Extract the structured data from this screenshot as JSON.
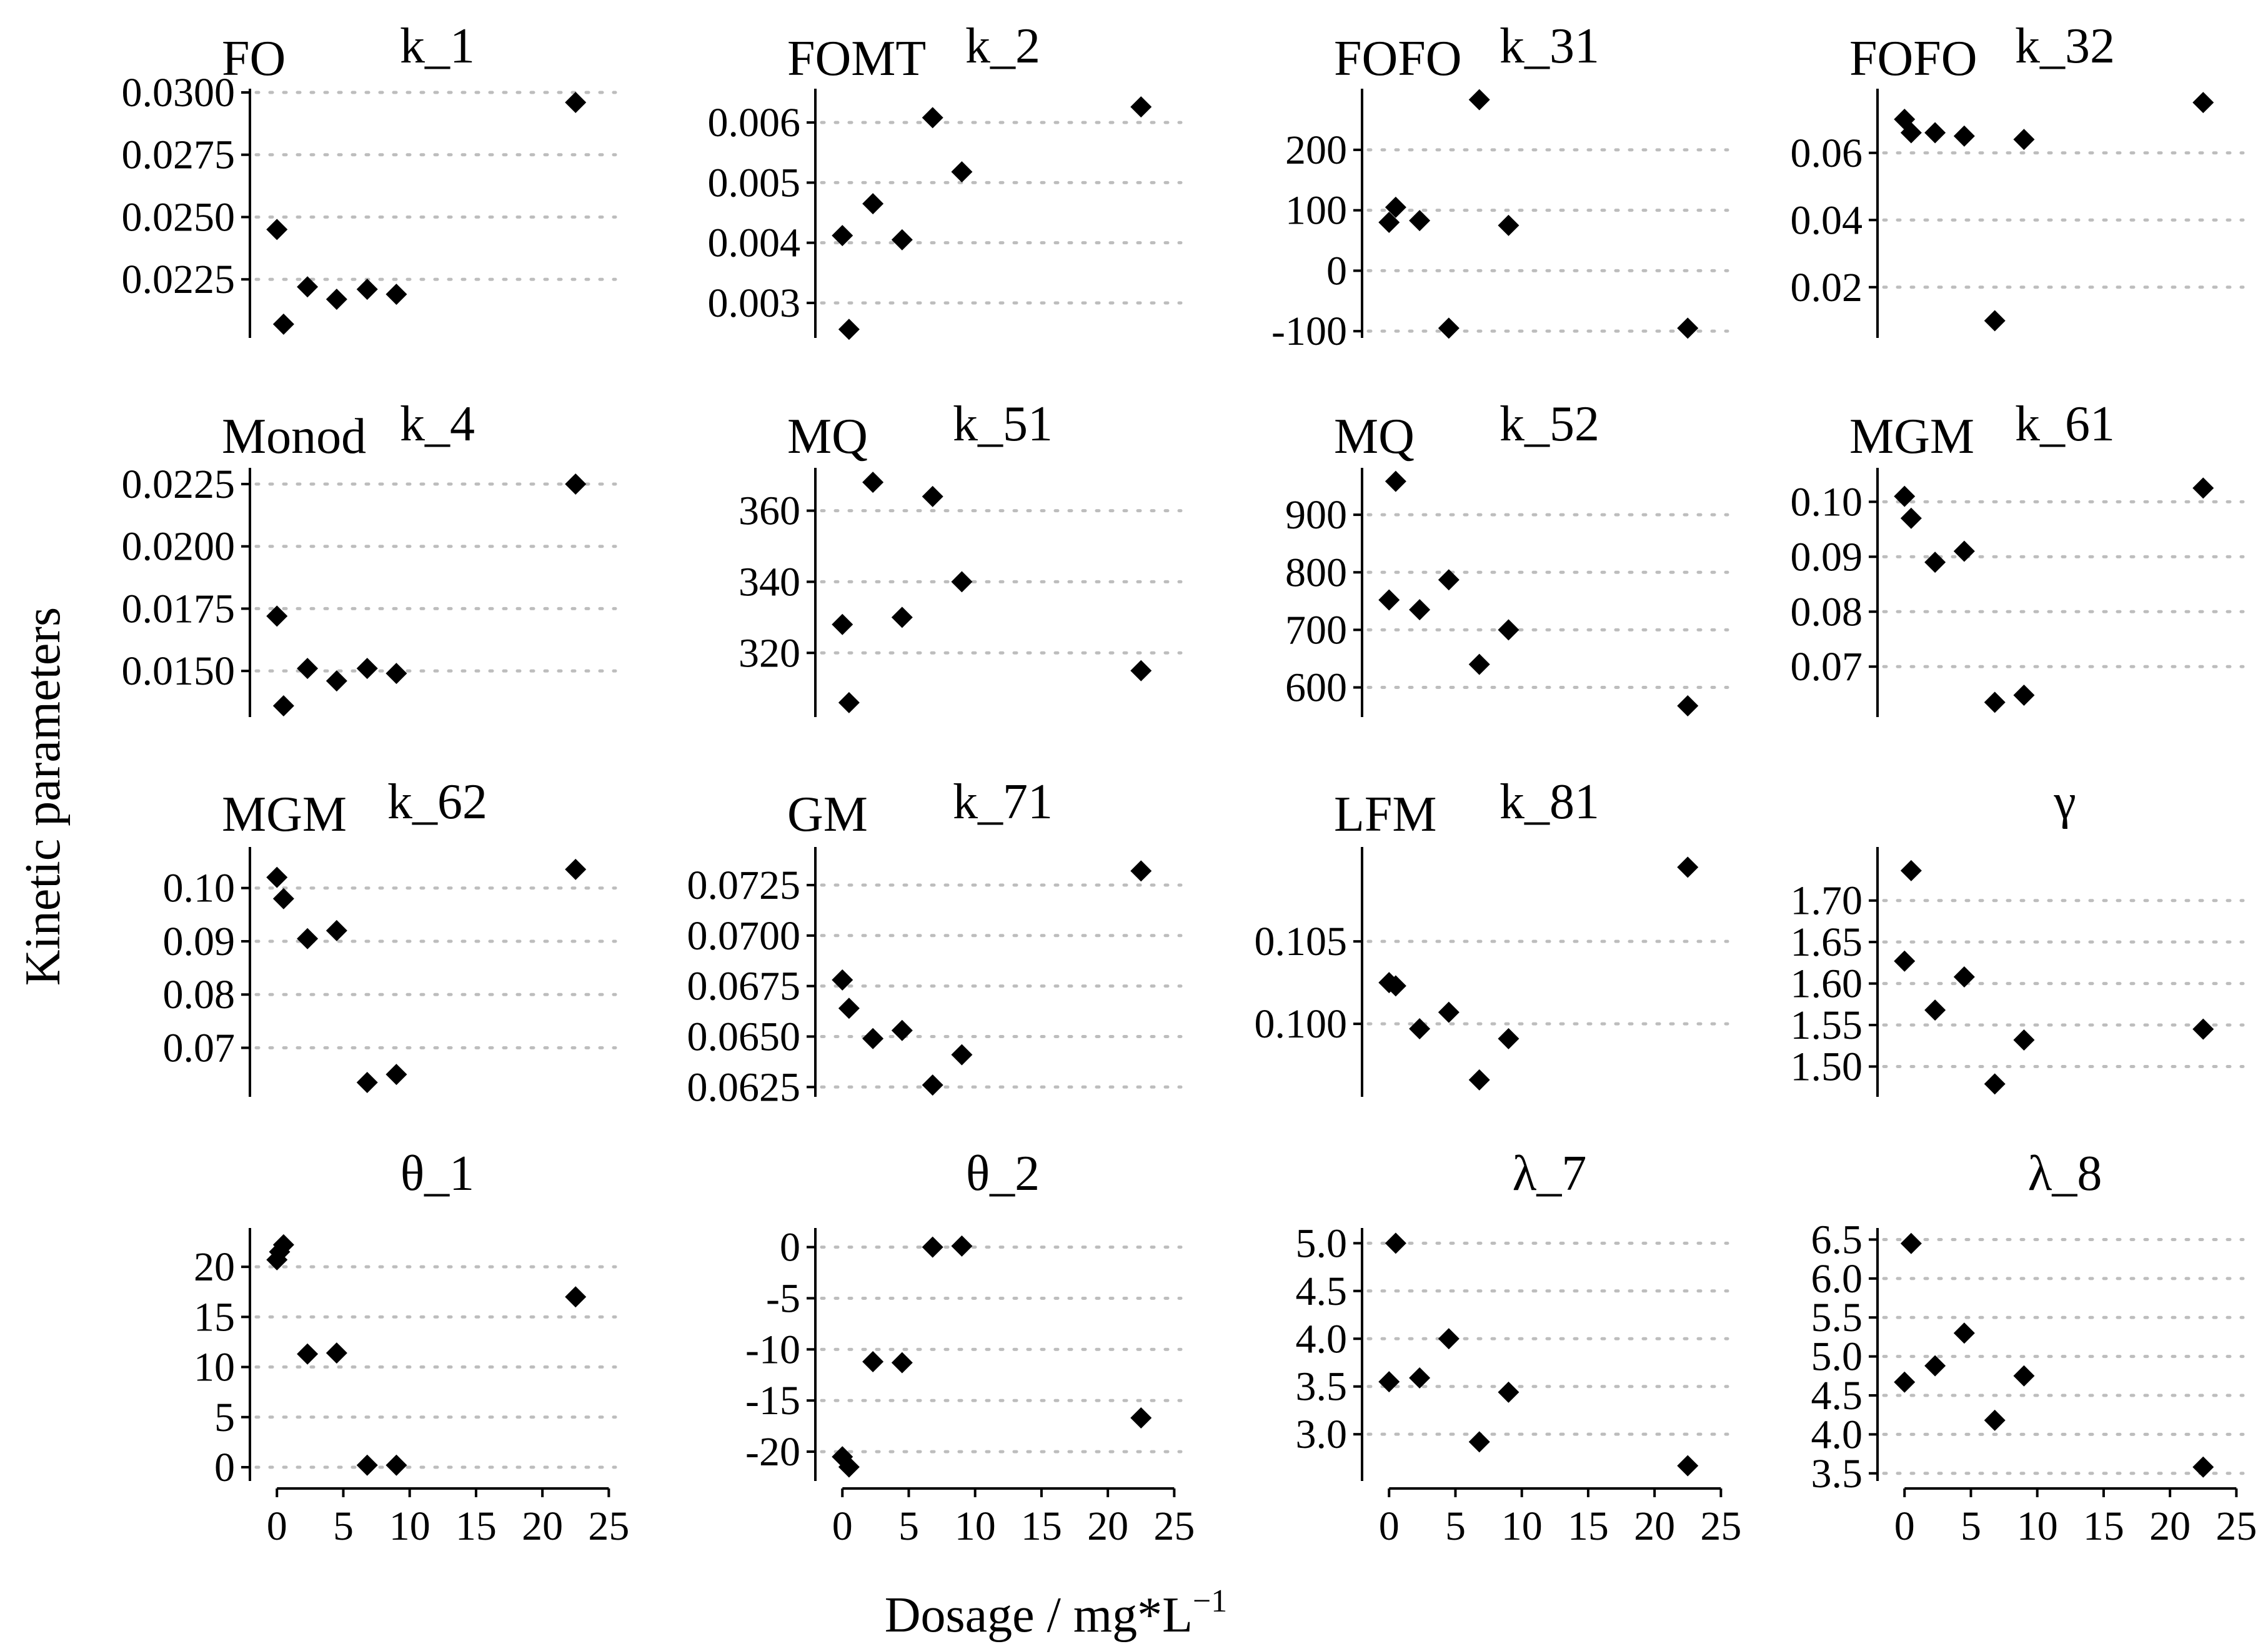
{
  "figure": {
    "xlabel": "Dosage  / mg*L",
    "xlabel_superscript": "−1",
    "ylabel": "Kinetic parameters"
  },
  "chart_data": [
    {
      "type": "scatter",
      "model": "FO",
      "title": "k_1",
      "x": [
        0,
        0.5,
        2.3,
        4.5,
        6.8,
        9,
        22.5
      ],
      "y": [
        0.0245,
        0.0207,
        0.0222,
        0.0217,
        0.0221,
        0.0219,
        0.0296
      ],
      "yticks": [
        0.0225,
        0.025,
        0.0275,
        0.03
      ],
      "ytick_labels": [
        "0.0225",
        "0.0250",
        "0.0275",
        "0.0300"
      ],
      "ylim": [
        0.0203,
        0.03
      ],
      "xticks": [
        0,
        5,
        10,
        15,
        20,
        25
      ],
      "xlim": [
        -1,
        25.5
      ],
      "show_xaxis": false
    },
    {
      "type": "scatter",
      "model": "FOMT",
      "title": "k_2",
      "x": [
        0,
        0.5,
        2.3,
        4.5,
        6.8,
        9,
        22.5
      ],
      "y": [
        0.00412,
        0.00256,
        0.00465,
        0.00405,
        0.00608,
        0.00518,
        0.00626
      ],
      "yticks": [
        0.003,
        0.004,
        0.005,
        0.006
      ],
      "ytick_labels": [
        "0.003",
        "0.004",
        "0.005",
        "0.006"
      ],
      "ylim": [
        0.00248,
        0.0065
      ],
      "xticks": [
        0,
        5,
        10,
        15,
        20,
        25
      ],
      "xlim": [
        -1,
        25.5
      ],
      "show_xaxis": false
    },
    {
      "type": "scatter",
      "model": "FOFO",
      "title": "k_31",
      "x": [
        0,
        0.5,
        2.3,
        4.5,
        6.8,
        9,
        22.5
      ],
      "y": [
        80,
        105,
        83,
        -95,
        283,
        75,
        -95
      ],
      "yticks": [
        -100,
        0,
        100,
        200
      ],
      "ytick_labels": [
        "-100",
        "0",
        "100",
        "200"
      ],
      "ylim": [
        -105,
        295
      ],
      "xticks": [
        0,
        5,
        10,
        15,
        20,
        25
      ],
      "xlim": [
        -1,
        25.5
      ],
      "show_xaxis": false
    },
    {
      "type": "scatter",
      "model": "FOFO",
      "title": "k_32",
      "x": [
        0,
        0.5,
        2.3,
        4.5,
        6.8,
        9,
        22.5
      ],
      "y": [
        0.07,
        0.066,
        0.066,
        0.065,
        0.01,
        0.064,
        0.075
      ],
      "yticks": [
        0.02,
        0.04,
        0.06
      ],
      "ytick_labels": [
        "0.02",
        "0.04",
        "0.06"
      ],
      "ylim": [
        0.006,
        0.078
      ],
      "xticks": [
        0,
        5,
        10,
        15,
        20,
        25
      ],
      "xlim": [
        -1,
        25.5
      ],
      "show_xaxis": false
    },
    {
      "type": "scatter",
      "model": "Monod",
      "title": "k_4",
      "x": [
        0,
        0.5,
        2.3,
        4.5,
        6.8,
        9,
        22.5
      ],
      "y": [
        0.0172,
        0.0136,
        0.0151,
        0.0146,
        0.0151,
        0.0149,
        0.0225
      ],
      "yticks": [
        0.015,
        0.0175,
        0.02,
        0.0225
      ],
      "ytick_labels": [
        "0.0150",
        "0.0175",
        "0.0200",
        "0.0225"
      ],
      "ylim": [
        0.0133,
        0.023
      ],
      "xticks": [
        0,
        5,
        10,
        15,
        20,
        25
      ],
      "xlim": [
        -1,
        25.5
      ],
      "show_xaxis": false
    },
    {
      "type": "scatter",
      "model": "MQ",
      "title": "k_51",
      "x": [
        0,
        0.5,
        2.3,
        4.5,
        6.8,
        9,
        22.5
      ],
      "y": [
        328,
        306,
        368,
        330,
        364,
        340,
        315
      ],
      "yticks": [
        320,
        340,
        360
      ],
      "ytick_labels": [
        "320",
        "340",
        "360"
      ],
      "ylim": [
        303,
        371
      ],
      "xticks": [
        0,
        5,
        10,
        15,
        20,
        25
      ],
      "xlim": [
        -1,
        25.5
      ],
      "show_xaxis": false
    },
    {
      "type": "scatter",
      "model": "MQ",
      "title": "k_52",
      "x": [
        0,
        0.5,
        2.3,
        4.5,
        6.8,
        9,
        22.5
      ],
      "y": [
        752,
        958,
        735,
        787,
        640,
        700,
        568
      ],
      "yticks": [
        600,
        700,
        800,
        900
      ],
      "ytick_labels": [
        "600",
        "700",
        "800",
        "900"
      ],
      "ylim": [
        555,
        975
      ],
      "xticks": [
        0,
        5,
        10,
        15,
        20,
        25
      ],
      "xlim": [
        -1,
        25.5
      ],
      "show_xaxis": false
    },
    {
      "type": "scatter",
      "model": "MGM",
      "title": "k_61",
      "x": [
        0,
        0.5,
        2.3,
        4.5,
        6.8,
        9,
        22.5
      ],
      "y": [
        0.101,
        0.097,
        0.089,
        0.091,
        0.0635,
        0.0648,
        0.1025
      ],
      "yticks": [
        0.07,
        0.08,
        0.09,
        0.1
      ],
      "ytick_labels": [
        "0.07",
        "0.08",
        "0.09",
        "0.10"
      ],
      "ylim": [
        0.0615,
        0.1055
      ],
      "xticks": [
        0,
        5,
        10,
        15,
        20,
        25
      ],
      "xlim": [
        -1,
        25.5
      ],
      "show_xaxis": false
    },
    {
      "type": "scatter",
      "model": "MGM",
      "title": "k_62",
      "x": [
        0,
        0.5,
        2.3,
        4.5,
        6.8,
        9,
        22.5
      ],
      "y": [
        0.102,
        0.098,
        0.0905,
        0.092,
        0.0635,
        0.065,
        0.1035
      ],
      "yticks": [
        0.07,
        0.08,
        0.09,
        0.1
      ],
      "ytick_labels": [
        "0.07",
        "0.08",
        "0.09",
        "0.10"
      ],
      "ylim": [
        0.0615,
        0.107
      ],
      "xticks": [
        0,
        5,
        10,
        15,
        20,
        25
      ],
      "xlim": [
        -1,
        25.5
      ],
      "show_xaxis": false
    },
    {
      "type": "scatter",
      "model": "GM",
      "title": "k_71",
      "x": [
        0,
        0.5,
        2.3,
        4.5,
        6.8,
        9,
        22.5
      ],
      "y": [
        0.0678,
        0.0664,
        0.0649,
        0.0653,
        0.0626,
        0.0641,
        0.0732
      ],
      "yticks": [
        0.0625,
        0.065,
        0.0675,
        0.07,
        0.0725
      ],
      "ytick_labels": [
        "0.0625",
        "0.0650",
        "0.0675",
        "0.0700",
        "0.0725"
      ],
      "ylim": [
        0.0622,
        0.0742
      ],
      "xticks": [
        0,
        5,
        10,
        15,
        20,
        25
      ],
      "xlim": [
        -1,
        25.5
      ],
      "show_xaxis": false
    },
    {
      "type": "scatter",
      "model": "LFM",
      "title": "k_81",
      "x": [
        0,
        0.5,
        2.3,
        4.5,
        6.8,
        9,
        22.5
      ],
      "y": [
        0.1025,
        0.1023,
        0.0997,
        0.1007,
        0.0966,
        0.0991,
        0.1095
      ],
      "yticks": [
        0.1,
        0.105
      ],
      "ytick_labels": [
        "0.100",
        "0.105"
      ],
      "ylim": [
        0.0958,
        0.1105
      ],
      "xticks": [
        0,
        5,
        10,
        15,
        20,
        25
      ],
      "xlim": [
        -1,
        25.5
      ],
      "show_xaxis": false
    },
    {
      "type": "scatter",
      "model": "",
      "title": "γ",
      "x": [
        0,
        0.5,
        2.3,
        4.5,
        6.8,
        9,
        22.5
      ],
      "y": [
        1.627,
        1.736,
        1.568,
        1.608,
        1.479,
        1.532,
        1.545
      ],
      "yticks": [
        1.5,
        1.55,
        1.6,
        1.65,
        1.7
      ],
      "ytick_labels": [
        "1.50",
        "1.55",
        "1.60",
        "1.65",
        "1.70"
      ],
      "ylim": [
        1.468,
        1.76
      ],
      "xticks": [
        0,
        5,
        10,
        15,
        20,
        25
      ],
      "xlim": [
        -1,
        25.5
      ],
      "show_xaxis": false
    },
    {
      "type": "scatter",
      "model": "",
      "title": "θ_1",
      "x": [
        0,
        0.2,
        0.5,
        2.3,
        4.5,
        6.8,
        9,
        22.5
      ],
      "y": [
        20.7,
        21.5,
        22.2,
        11.3,
        11.4,
        0.2,
        0.2,
        17
      ],
      "yticks": [
        0,
        5,
        10,
        15,
        20
      ],
      "ytick_labels": [
        "0",
        "5",
        "10",
        "15",
        "20"
      ],
      "ylim": [
        -1,
        23.5
      ],
      "xticks": [
        0,
        5,
        10,
        15,
        20,
        25
      ],
      "xlim": [
        -1,
        25.5
      ],
      "show_xaxis": true
    },
    {
      "type": "scatter",
      "model": "",
      "title": "θ_2",
      "x": [
        0,
        0.5,
        2.3,
        4.5,
        6.8,
        9,
        22.5
      ],
      "y": [
        -20.5,
        -21.5,
        -11.2,
        -11.3,
        0,
        0.1,
        -16.7
      ],
      "yticks": [
        -20,
        -15,
        -10,
        -5,
        0
      ],
      "ytick_labels": [
        "-20",
        "-15",
        "-10",
        "-5",
        "0"
      ],
      "ylim": [
        -22.5,
        1.5
      ],
      "xticks": [
        0,
        5,
        10,
        15,
        20,
        25
      ],
      "xlim": [
        -1,
        25.5
      ],
      "show_xaxis": true
    },
    {
      "type": "scatter",
      "model": "",
      "title": "λ_7",
      "x": [
        0,
        0.5,
        2.3,
        4.5,
        6.8,
        9,
        22.5
      ],
      "y": [
        3.55,
        5.0,
        3.59,
        4.0,
        2.92,
        3.44,
        2.67
      ],
      "yticks": [
        3,
        3.5,
        4,
        4.5,
        5
      ],
      "ytick_labels": [
        "3.0",
        "3.5",
        "4.0",
        "4.5",
        "5.0"
      ],
      "ylim": [
        2.55,
        5.12
      ],
      "xticks": [
        0,
        5,
        10,
        15,
        20,
        25
      ],
      "xlim": [
        -1,
        25.5
      ],
      "show_xaxis": true
    },
    {
      "type": "scatter",
      "model": "",
      "title": "λ_8",
      "x": [
        0,
        0.5,
        2.3,
        4.5,
        6.8,
        9,
        22.5
      ],
      "y": [
        4.67,
        6.45,
        4.88,
        5.3,
        4.18,
        4.75,
        3.58
      ],
      "yticks": [
        3.5,
        4,
        4.5,
        5,
        5.5,
        6,
        6.5
      ],
      "ytick_labels": [
        "3.5",
        "4.0",
        "4.5",
        "5.0",
        "5.5",
        "6.0",
        "6.5"
      ],
      "ylim": [
        3.45,
        6.6
      ],
      "xticks": [
        0,
        5,
        10,
        15,
        20,
        25
      ],
      "xlim": [
        -1,
        25.5
      ],
      "show_xaxis": true
    }
  ]
}
